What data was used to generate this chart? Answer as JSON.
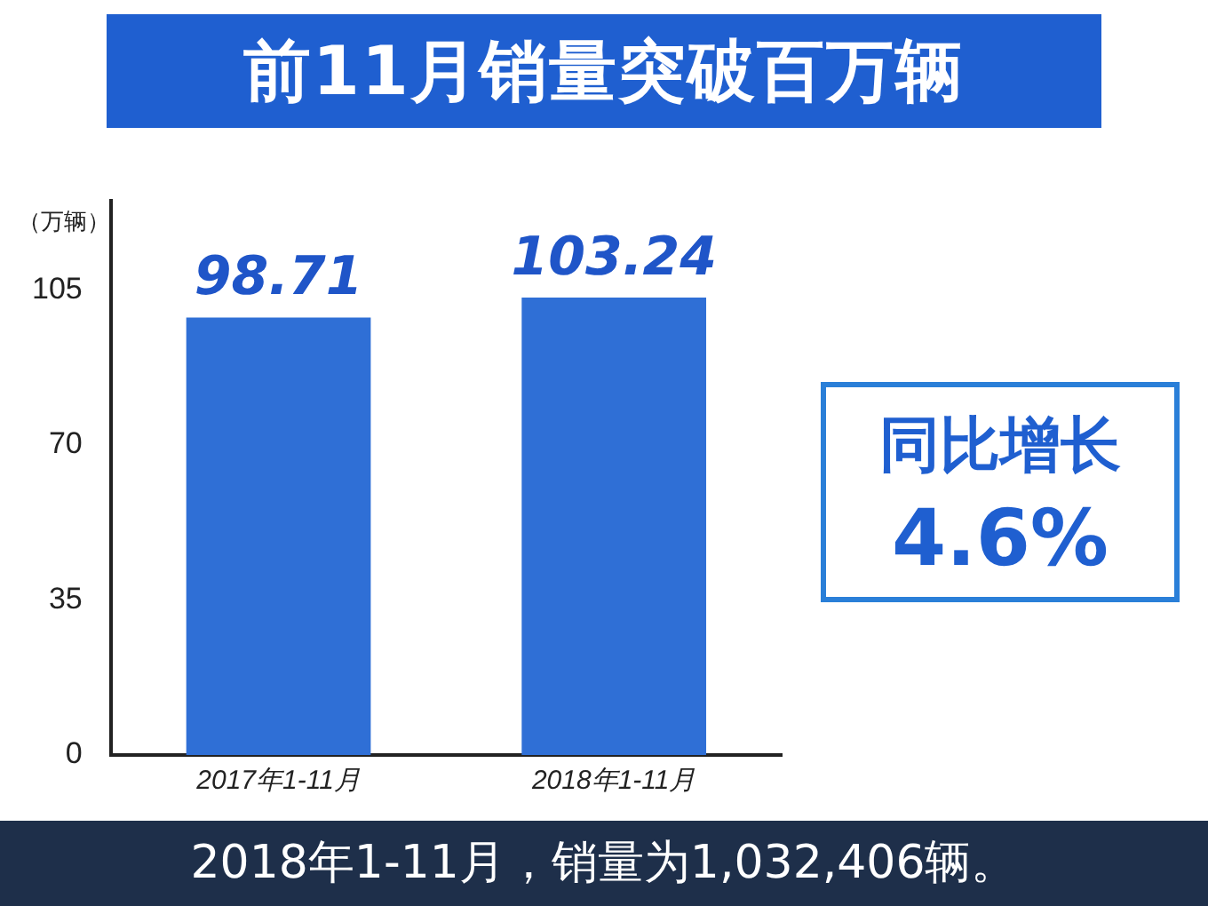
{
  "chart_data": {
    "type": "bar",
    "title": "前11月销量突破百万辆",
    "ylabel": "（万辆）",
    "categories": [
      "2017年1-11月",
      "2018年1-11月"
    ],
    "values": [
      98.71,
      103.24
    ],
    "color": "#2f6fd6",
    "ylim": [
      0,
      125
    ],
    "yticks": [
      0,
      35,
      70,
      105
    ],
    "grid": false,
    "legend": false,
    "data_labels": true,
    "annotations": [
      "同比增长",
      "4.6%",
      "2018年1-11月，销量为1,032,406辆。"
    ]
  }
}
